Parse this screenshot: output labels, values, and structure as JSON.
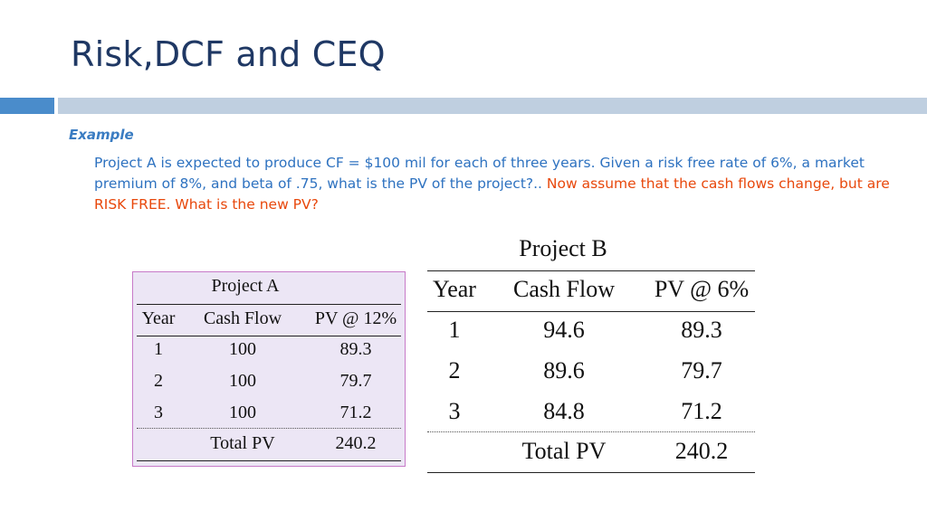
{
  "slide": {
    "title": "Risk,DCF and CEQ",
    "example_label": "Example",
    "text_blue": "Project A is expected to produce CF = $100 mil for each of three years. Given a risk free rate of 6%, a market premium of 8%, and beta of .75, what is the PV of the project?.. ",
    "text_red": "Now assume that the cash flows change, but are RISK FREE.  What is the new PV?"
  },
  "colors": {
    "title": "#1f3864",
    "blue_text": "#2e72c0",
    "red_text": "#e8480c",
    "bar_accent": "#4a8ccb",
    "bar_main": "#bfcfe0"
  },
  "project_a": {
    "title": "Project A",
    "headers": [
      "Year",
      "Cash Flow",
      "PV @ 12%"
    ],
    "rows": [
      [
        "1",
        "100",
        "89.3"
      ],
      [
        "2",
        "100",
        "79.7"
      ],
      [
        "3",
        "100",
        "71.2"
      ]
    ],
    "total_label": "Total PV",
    "total_value": "240.2"
  },
  "project_b": {
    "title": "Project B",
    "headers": [
      "Year",
      "Cash Flow",
      "PV @ 6%"
    ],
    "rows": [
      [
        "1",
        "94.6",
        "89.3"
      ],
      [
        "2",
        "89.6",
        "79.7"
      ],
      [
        "3",
        "84.8",
        "71.2"
      ]
    ],
    "total_label": "Total PV",
    "total_value": "240.2"
  }
}
